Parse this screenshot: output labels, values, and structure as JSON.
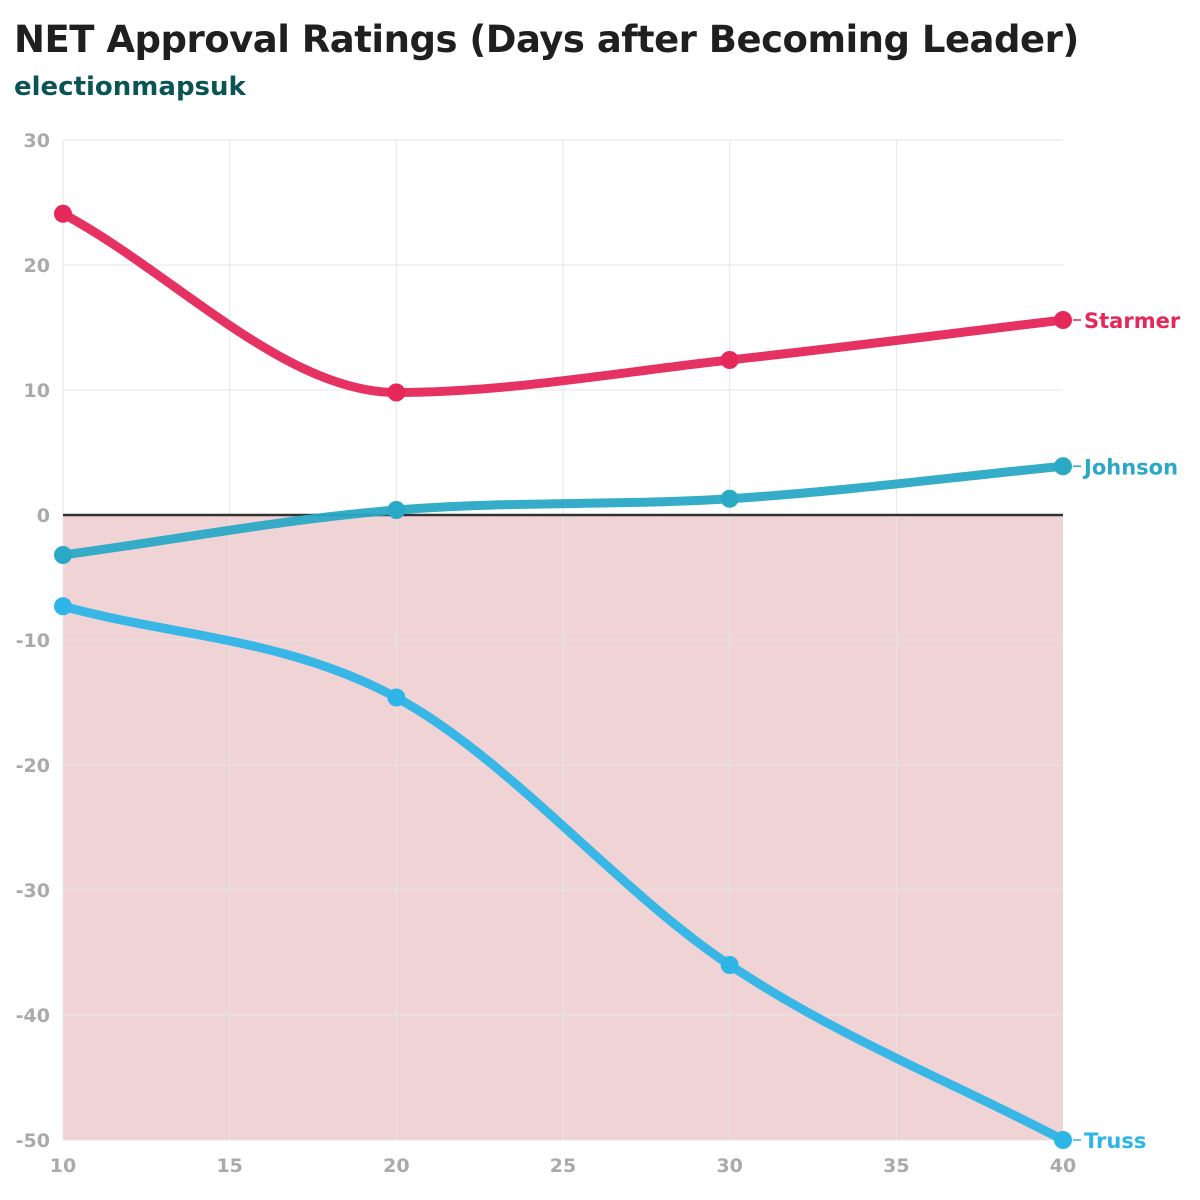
{
  "header": {
    "title": "NET Approval Ratings (Days after Becoming Leader)",
    "subtitle": "electionmapsuk"
  },
  "colors": {
    "subtitle": "#0b5456",
    "negative_region": "#f0d3d5",
    "zero_line": "#333333",
    "grid": "#e6e6e6",
    "tick_text": "#aaaaaa"
  },
  "chart_data": {
    "type": "line",
    "x": [
      10,
      20,
      30,
      40
    ],
    "xlim": [
      10,
      40
    ],
    "ylim": [
      -50,
      30
    ],
    "xticks": [
      10,
      15,
      20,
      25,
      30,
      35,
      40
    ],
    "yticks": [
      30,
      20,
      10,
      0,
      -10,
      -20,
      -30,
      -40,
      -50
    ],
    "grid": true,
    "negative_region_shaded": true,
    "legend": "end-of-line labels",
    "series": [
      {
        "name": "Starmer",
        "color": "#e5275a",
        "values": [
          24.1,
          9.8,
          12.4,
          15.6
        ]
      },
      {
        "name": "Johnson",
        "color": "#2aa9c6",
        "values": [
          -3.2,
          0.4,
          1.3,
          3.9
        ]
      },
      {
        "name": "Truss",
        "color": "#2db5e8",
        "values": [
          -7.3,
          -14.6,
          -36,
          -50
        ]
      }
    ]
  }
}
